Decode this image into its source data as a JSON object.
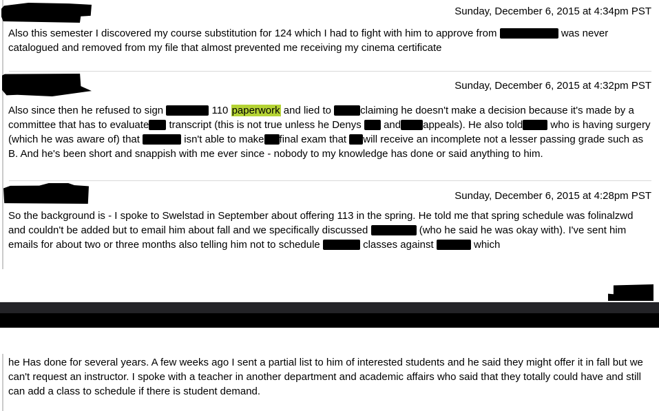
{
  "colors": {
    "highlight": "#b5d334",
    "redaction": "#000000",
    "divider": "#d9d9d9",
    "quote_border": "#cbcbcb",
    "redaction_bar_dark_gray": "#232327",
    "redaction_bar_black": "#000000"
  },
  "messages": [
    {
      "sender": "(redacted)",
      "timestamp": "Sunday, December 6, 2015 at 4:34pm PST",
      "body": [
        {
          "t": "Also this semester I discovered my course substitution for 124 which I had to fight with him to approve from "
        },
        {
          "redact": 85
        },
        {
          "t": " was never catalogued and removed from my file that almost prevented me receiving my cinema certificate"
        }
      ]
    },
    {
      "sender": "(redacted)",
      "timestamp": "Sunday, December 6, 2015 at 4:32pm PST",
      "body": [
        {
          "t": "Also since then he refused to sign "
        },
        {
          "redact": 62
        },
        {
          "t": " 110 "
        },
        {
          "mark": "paperwork"
        },
        {
          "t": " and lied to "
        },
        {
          "redact": 38
        },
        {
          "t": "claiming he doesn't make a decision because it's made by a committee that has to evaluate"
        },
        {
          "redact": 25
        },
        {
          "t": " transcript (this is not true unless he Denys "
        },
        {
          "redact": 24
        },
        {
          "t": " and"
        },
        {
          "redact": 32
        },
        {
          "t": "appeals). He also told"
        },
        {
          "redact": 36
        },
        {
          "t": " who is having surgery (which he was aware of) that "
        },
        {
          "redact": 56
        },
        {
          "t": " isn't able to make"
        },
        {
          "redact": 22
        },
        {
          "t": "final exam that "
        },
        {
          "redact": 20
        },
        {
          "t": "will receive an incomplete not a lesser passing grade such as B. And he's been short and snappish with me ever since - nobody to my knowledge has done or said anything to him."
        }
      ]
    },
    {
      "sender": "(redacted)",
      "timestamp": "Sunday, December 6, 2015 at 4:28pm PST",
      "body": [
        {
          "t": "So the background is - I spoke to Swelstad in September about offering 113 in the spring. He told me that spring schedule was folinalzwd and couldn't be added but to email him about fall and we specifically discussed "
        },
        {
          "redact": 66
        },
        {
          "t": " (who he said he was okay with). I've sent him emails for about two or three months also telling him not to schedule "
        },
        {
          "redact": 54
        },
        {
          "t": " classes against "
        },
        {
          "redact": 50
        },
        {
          "t": " which"
        }
      ]
    }
  ],
  "continuation": {
    "body": [
      {
        "t": "he Has done for several years. A few weeks ago I sent a partial list to him of interested students and he said they might offer it in fall but we can't request an instructor. I spoke with a teacher in another department and academic affairs who said that they totally could have and still can add a class to schedule if there is student demand."
      }
    ]
  }
}
